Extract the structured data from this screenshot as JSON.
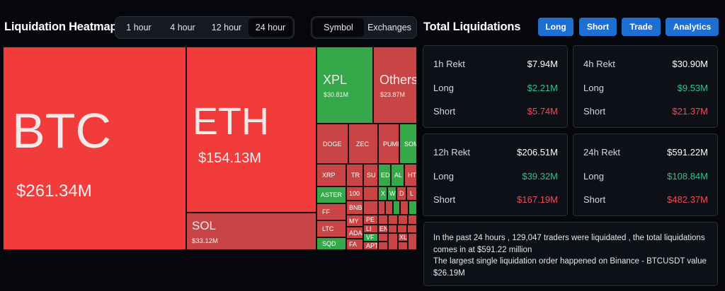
{
  "heatmap": {
    "title": "Liquidation Heatmap",
    "time_options": [
      "1 hour",
      "4 hour",
      "12 hour",
      "24 hour"
    ],
    "selected_time": "24 hour",
    "group_options": [
      "Symbol",
      "Exchanges"
    ],
    "selected_group": "Symbol"
  },
  "tiles": {
    "btc": {
      "symbol": "BTC",
      "value": "$261.34M"
    },
    "eth": {
      "symbol": "ETH",
      "value": "$154.13M"
    },
    "sol": {
      "symbol": "SOL",
      "value": "$33.12M"
    },
    "xpl": {
      "symbol": "XPL",
      "value": "$30.81M"
    },
    "others": {
      "symbol": "Others",
      "value": "$23.87M"
    },
    "doge": "DOGE",
    "zec": "ZEC",
    "pump": "PUMP",
    "somi": "SOMI",
    "xrp": "XRP",
    "tr": "TR",
    "su": "SU",
    "ed": "ED",
    "al": "AL",
    "ht": "HT",
    "aster": "ASTER",
    "c100": "100",
    "x": "X",
    "w": "W",
    "d": "D",
    "l": "L",
    "ff": "FF",
    "bn": "BNB",
    "ltc": "LTC",
    "my": "MY",
    "pe": "PE",
    "li": "LI",
    "sqd": "SQD",
    "ad": "ADA",
    "fa": "FA",
    "vf": "VF",
    "ap": "APT",
    "el": "EN",
    "xl": "XL"
  },
  "totals": {
    "title": "Total Liquidations",
    "buttons": [
      "Long",
      "Short",
      "Trade",
      "Analytics"
    ],
    "cards": [
      {
        "label": "1h Rekt",
        "total": "$7.94M",
        "long_label": "Long",
        "long": "$2.21M",
        "short_label": "Short",
        "short": "$5.74M"
      },
      {
        "label": "4h Rekt",
        "total": "$30.90M",
        "long_label": "Long",
        "long": "$9.53M",
        "short_label": "Short",
        "short": "$21.37M"
      },
      {
        "label": "12h Rekt",
        "total": "$206.51M",
        "long_label": "Long",
        "long": "$39.32M",
        "short_label": "Short",
        "short": "$167.19M"
      },
      {
        "label": "24h Rekt",
        "total": "$591.22M",
        "long_label": "Long",
        "long": "$108.84M",
        "short_label": "Short",
        "short": "$482.37M"
      }
    ]
  },
  "summary": {
    "line1": "In the past 24 hours , 129,047 traders were liquidated , the total liquidations",
    "line2": "comes in at $591.22 million",
    "line3": "The largest single liquidation order happened on Binance - BTCUSDT value",
    "line4": "$26.19M"
  },
  "colors": {
    "accent_blue": "#1f6fd1",
    "long_green": "#2fc28e",
    "short_red": "#f04b5a",
    "tile_red": "#f23b3b",
    "tile_dark_red": "#c94545",
    "tile_green": "#35a84a"
  }
}
